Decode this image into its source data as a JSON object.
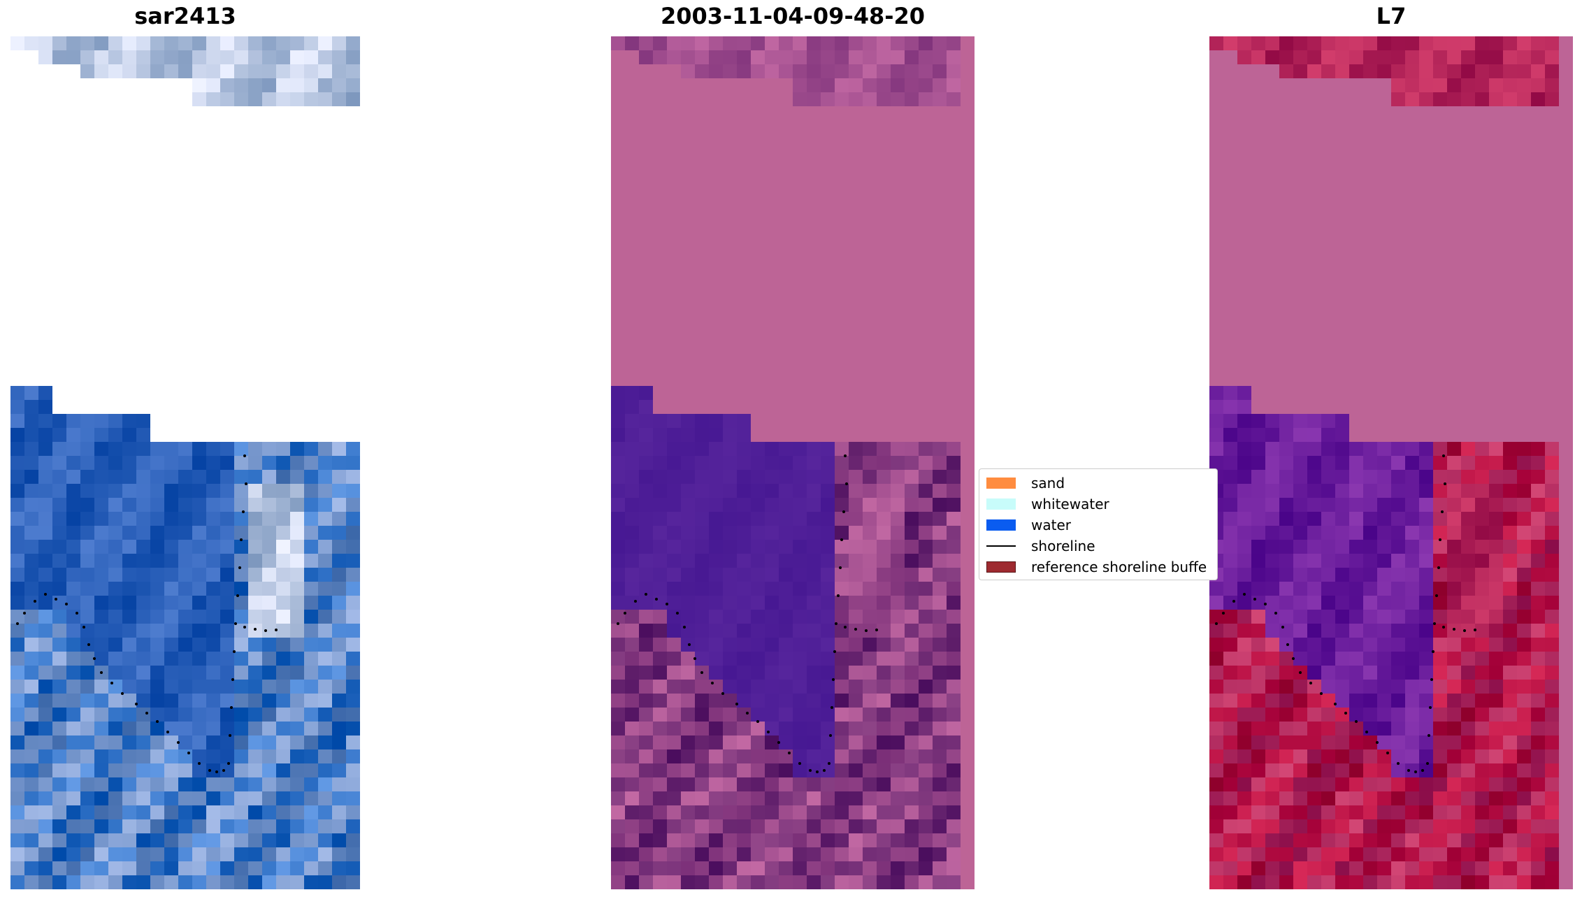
{
  "panels": [
    {
      "id": "sar",
      "title": "sar2413"
    },
    {
      "id": "classified",
      "title": "2003-11-04-09-48-20"
    },
    {
      "id": "index",
      "title": "L7"
    }
  ],
  "legend": {
    "items": [
      {
        "label": "sand",
        "kind": "patch",
        "color": "#ff8c3f"
      },
      {
        "label": "whitewater",
        "kind": "patch",
        "color": "#c8fcfa"
      },
      {
        "label": "water",
        "kind": "patch",
        "color": "#0a5cf0"
      },
      {
        "label": "shoreline",
        "kind": "line",
        "color": "#000000"
      },
      {
        "label": "reference shoreline buffe",
        "kind": "patch",
        "color": "#9e2a30"
      }
    ]
  },
  "colors": {
    "sar_water": "#3c6ec4",
    "sar_shallow": "#4a86d6",
    "sar_land": "#8aa6d8",
    "sar_bright": "#d4ddf2",
    "sar_nodata": "#ffffff",
    "class_nodata": "#bd6496",
    "class_water": "#53229a",
    "class_land": "#80387e",
    "class_land_light": "#b05a98",
    "l7_nodata": "#bd6496",
    "l7_water": "#7a2aa6",
    "l7_land": "#c41a4c",
    "shoreline_dots": "#000000"
  }
}
